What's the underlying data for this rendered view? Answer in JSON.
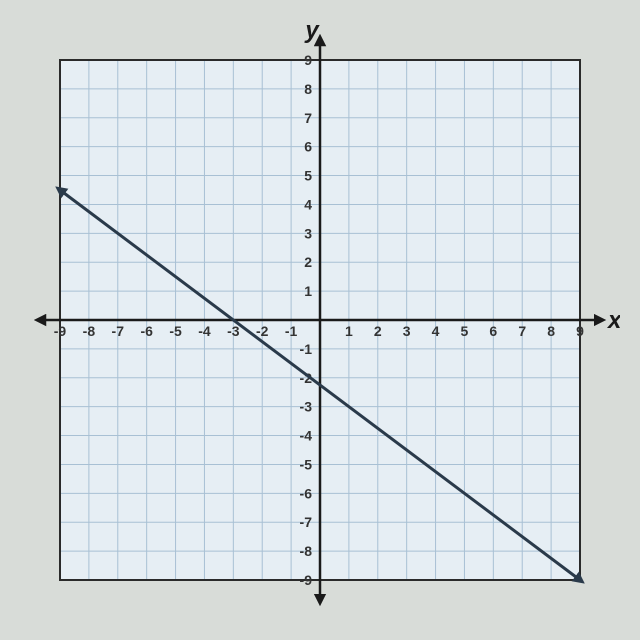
{
  "chart": {
    "type": "line",
    "xlabel": "x",
    "ylabel": "y",
    "xlim": [
      -9,
      9
    ],
    "ylim": [
      -9,
      9
    ],
    "xtick_step": 1,
    "ytick_step": 1,
    "xtick_labels": [
      "-9",
      "-8",
      "-7",
      "-6",
      "-5",
      "-4",
      "-3",
      "-2",
      "-1",
      "1",
      "2",
      "3",
      "4",
      "5",
      "6",
      "7",
      "8",
      "9"
    ],
    "ytick_labels": [
      "-9",
      "-8",
      "-7",
      "-6",
      "-5",
      "-4",
      "-3",
      "-2",
      "-1",
      "1",
      "2",
      "3",
      "4",
      "5",
      "6",
      "7",
      "8",
      "9"
    ],
    "background_color": "#e6eef4",
    "grid_color": "#a8c0d4",
    "border_color": "#2a2a2a",
    "axis_color": "#1a1a1a",
    "line_color": "#2a3a4a",
    "line_width": 3,
    "line_points": [
      {
        "x": -9,
        "y": 4.5
      },
      {
        "x": 9,
        "y": -9
      }
    ],
    "slope": -0.75,
    "y_intercept": -2.25,
    "label_fontsize": 24,
    "tick_fontsize": 14,
    "arrow_size": 10
  }
}
